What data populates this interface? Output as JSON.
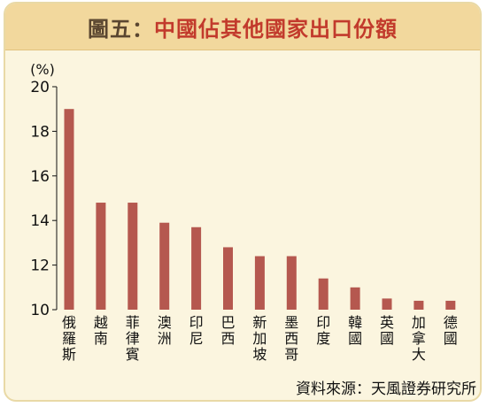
{
  "title": {
    "prefix": "圖五：",
    "main": "中國佔其他國家出口份額"
  },
  "source": "資料來源：天風證券研究所",
  "colors": {
    "bar": "#b5584f",
    "background": "#fbf5df",
    "title_bar": "#f2d89d"
  },
  "chart_data": {
    "type": "bar",
    "title": "中國佔其他國家出口份額",
    "ylabel": "(%)",
    "xlabel": "",
    "ylim": [
      10,
      20
    ],
    "yticks": [
      10,
      12,
      14,
      16,
      18,
      20
    ],
    "categories": [
      "俄羅斯",
      "越南",
      "菲律賓",
      "澳洲",
      "印尼",
      "巴西",
      "新加坡",
      "墨西哥",
      "印度",
      "韓國",
      "英國",
      "加拿大",
      "德國"
    ],
    "values": [
      19.0,
      14.8,
      14.8,
      13.9,
      13.7,
      12.8,
      12.4,
      12.4,
      11.4,
      11.0,
      10.5,
      10.4,
      10.4
    ],
    "grid": false,
    "legend": "none"
  }
}
